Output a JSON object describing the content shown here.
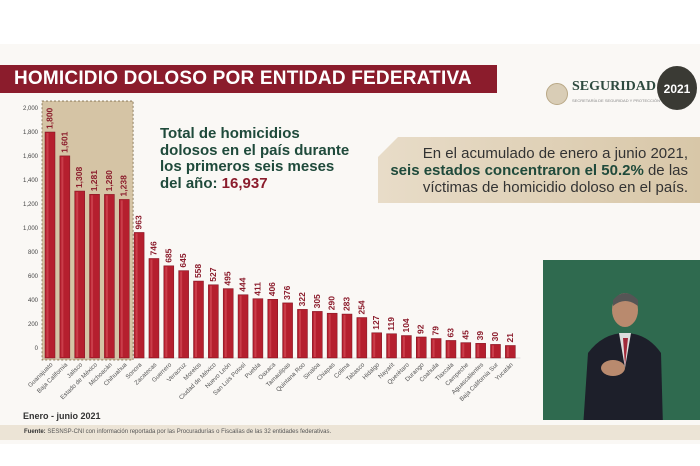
{
  "title": "HOMICIDIO DOLOSO POR ENTIDAD FEDERATIVA",
  "logo": {
    "name": "SEGURIDAD",
    "subtitle": "SECRETARÍA DE SEGURIDAD Y PROTECCIÓN CIUDADANA",
    "badge": "2021"
  },
  "total_text": {
    "line1": "Total de homicidios",
    "line2": "dolosos en el país durante",
    "line3": "los primeros seis meses",
    "line4": "del año: ",
    "value": "16,937"
  },
  "callout": {
    "line1": "En el acumulado de enero a junio 2021,",
    "bold": "seis estados concentraron el 50.2%",
    "rest": " de las",
    "line3": "víctimas de homicidio doloso en el país."
  },
  "period": "Enero - junio 2021",
  "footer": {
    "label": "Fuente:",
    "text": " SESNSP-CNI con información reportada por las Procuradurías o Fiscalías de las 32 entidades federativas."
  },
  "colors": {
    "bar": "#b51f2e",
    "banner": "#8b1c2c",
    "highlight": "#c8b38a"
  },
  "chart_data": {
    "type": "bar",
    "title": "HOMICIDIO DOLOSO POR ENTIDAD FEDERATIVA",
    "xlabel": "",
    "ylabel": "",
    "ylim": [
      0,
      2000
    ],
    "yticks": [
      "0",
      "200",
      "400",
      "600",
      "800",
      "1,000",
      "1,200",
      "1,400",
      "1,600",
      "1,800",
      "2,000"
    ],
    "highlighted_count": 6,
    "categories": [
      "Guanajuato",
      "Baja California",
      "Jalisco",
      "Estado de México",
      "Michoacán",
      "Chihuahua",
      "Sonora",
      "Zacatecas",
      "Guerrero",
      "Veracruz",
      "Morelos",
      "Ciudad de México",
      "Nuevo León",
      "San Luis Potosí",
      "Puebla",
      "Oaxaca",
      "Tamaulipas",
      "Quintana Roo",
      "Sinaloa",
      "Chiapas",
      "Colima",
      "Tabasco",
      "Hidalgo",
      "Nayarit",
      "Querétaro",
      "Durango",
      "Coahuila",
      "Tlaxcala",
      "Campeche",
      "Aguascalientes",
      "Baja California Sur",
      "Yucatán"
    ],
    "values": [
      1800,
      1601,
      1308,
      1281,
      1280,
      1238,
      963,
      746,
      685,
      645,
      558,
      527,
      495,
      444,
      411,
      406,
      376,
      322,
      305,
      290,
      283,
      254,
      127,
      119,
      104,
      92,
      79,
      63,
      45,
      39,
      30,
      21
    ],
    "value_labels": [
      "1,800",
      "1,601",
      "1,308",
      "1,281",
      "1,280",
      "1,238",
      "963",
      "746",
      "685",
      "645",
      "558",
      "527",
      "495",
      "444",
      "411",
      "406",
      "376",
      "322",
      "305",
      "290",
      "283",
      "254",
      "127",
      "119",
      "104",
      "92",
      "79",
      "63",
      "45",
      "39",
      "30",
      "21"
    ]
  }
}
